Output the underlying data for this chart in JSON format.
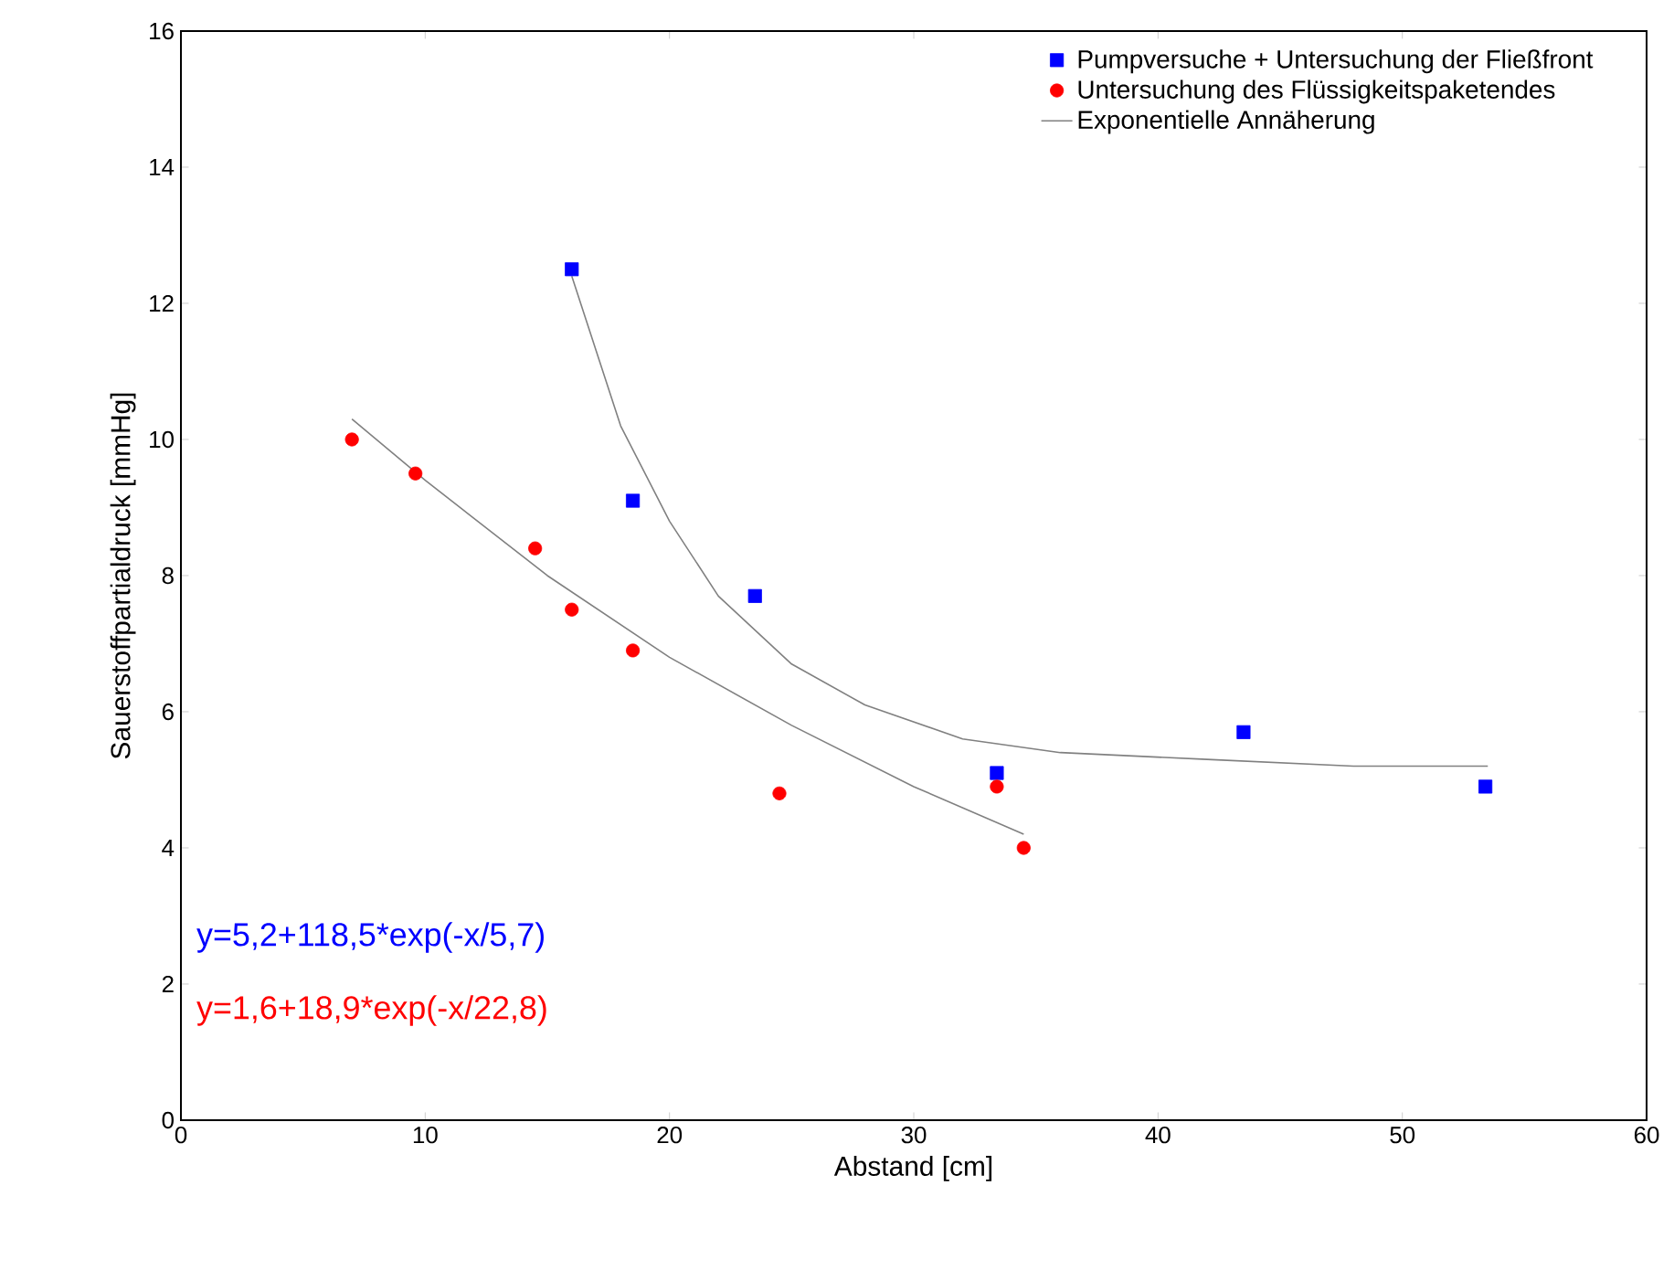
{
  "chart_data": {
    "type": "scatter",
    "xlabel": "Abstand [cm]",
    "ylabel": "Sauerstoffpartialdruck [mmHg]",
    "xlim": [
      0,
      60
    ],
    "ylim": [
      0,
      16
    ],
    "xticks": [
      0,
      10,
      20,
      30,
      40,
      50,
      60
    ],
    "yticks": [
      0,
      2,
      4,
      6,
      8,
      10,
      12,
      14,
      16
    ],
    "legend": "top right",
    "grid": false,
    "series": [
      {
        "name": "Pumpversuche + Untersuchung der Fließfront",
        "color": "#0000ff",
        "marker": "square",
        "x": [
          16.0,
          18.5,
          23.5,
          33.4,
          43.5,
          53.4
        ],
        "values": [
          12.5,
          9.1,
          7.7,
          5.1,
          5.7,
          4.9
        ]
      },
      {
        "name": "Untersuchung des Flüssigkeitspaketendes",
        "color": "#ff0000",
        "marker": "circle",
        "x": [
          7.0,
          9.6,
          14.5,
          16.0,
          18.5,
          24.5,
          33.4,
          34.5
        ],
        "values": [
          10.0,
          9.5,
          8.4,
          7.5,
          6.9,
          4.8,
          4.9,
          4.0
        ]
      },
      {
        "name": "Exponentielle Annäherung",
        "type": "line",
        "color": "#808080",
        "marker": "none",
        "x": [
          16,
          18,
          20,
          22,
          25,
          28,
          32,
          36,
          42,
          48,
          53.5
        ],
        "values": [
          12.4,
          10.2,
          8.8,
          7.7,
          6.7,
          6.1,
          5.6,
          5.4,
          5.3,
          5.2,
          5.2
        ]
      },
      {
        "type": "line",
        "color": "#808080",
        "marker": "none",
        "x": [
          7,
          10,
          15,
          20,
          25,
          30,
          34.5
        ],
        "values": [
          10.3,
          9.4,
          8.0,
          6.8,
          5.8,
          4.9,
          4.2
        ]
      }
    ],
    "annotations": [
      "y=5,2+118,5*exp(-x/5,7)",
      "y=1,6+18,9*exp(-x/22,8)"
    ]
  }
}
